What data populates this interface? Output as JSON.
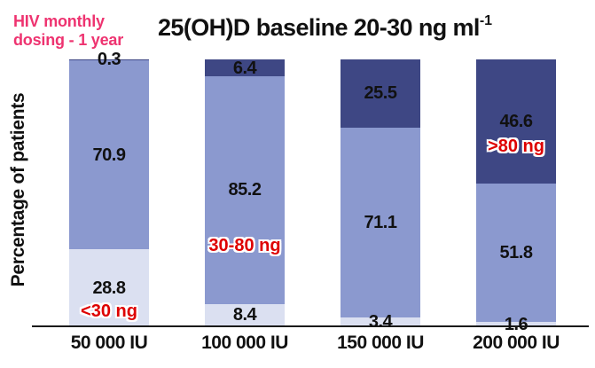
{
  "annotation": {
    "line1": "HIV monthly",
    "line2": "dosing - 1 year",
    "color": "#EE3370"
  },
  "title": {
    "main": "25(OH)D baseline 20-30 ng ml",
    "sup": "-1"
  },
  "y_axis": {
    "label": "Percentage of patients"
  },
  "colors": {
    "dark_blue": "#3E4784",
    "medium_blue": "#8B99CF",
    "light_blue": "#DBE0F1",
    "pink": "#EE3370",
    "red_label": "#DE0000",
    "text": "#111111"
  },
  "chart_data": {
    "type": "bar",
    "variant": "stacked-100-percent",
    "title": "25(OH)D baseline 20-30 ng ml-1",
    "context_label": "HIV monthly dosing - 1 year",
    "xlabel": "",
    "ylabel": "Percentage of patients",
    "ylim": [
      0,
      100
    ],
    "grid": false,
    "legend": "inline-labels",
    "categories": [
      "50 000 IU",
      "100 000 IU",
      "150 000 IU",
      "200 000 IU"
    ],
    "series": [
      {
        "name": "<30 ng",
        "color": "#DBE0F1",
        "values": [
          28.8,
          8.4,
          3.4,
          1.6
        ]
      },
      {
        "name": "30-80 ng",
        "color": "#8B99CF",
        "values": [
          70.9,
          85.2,
          71.1,
          51.8
        ]
      },
      {
        "name": ">80 ng",
        "color": "#3E4784",
        "values": [
          0.3,
          6.4,
          25.5,
          46.6
        ]
      }
    ],
    "inline_range_labels": [
      {
        "text": "<30 ng",
        "bar_index": 0,
        "series_index": 0
      },
      {
        "text": "30-80 ng",
        "bar_index": 1,
        "series_index": 1
      },
      {
        "text": ">80 ng",
        "bar_index": 3,
        "series_index": 2
      }
    ]
  }
}
